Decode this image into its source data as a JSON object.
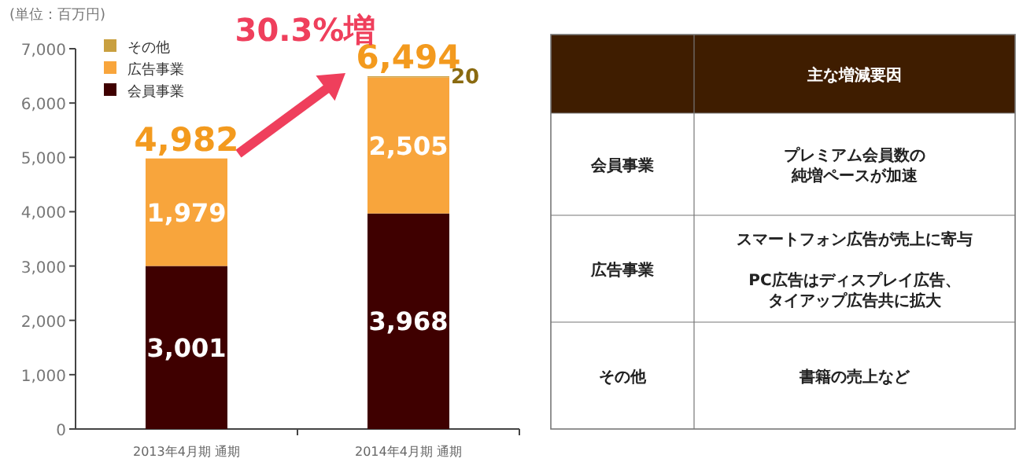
{
  "chart_data": [
    {
      "type": "bar",
      "stacked": true,
      "ylabel": "(単位：百万円)",
      "categories": [
        "2013年4月期 通期",
        "2014年4月期 通期"
      ],
      "series": [
        {
          "name": "会員事業",
          "color": "#3f0000",
          "values": [
            3001,
            3968
          ],
          "value_labels": [
            "3,001",
            "3,968"
          ]
        },
        {
          "name": "広告事業",
          "color": "#f8a53c",
          "values": [
            1979,
            2505
          ],
          "value_labels": [
            "1,979",
            "2,505"
          ]
        },
        {
          "name": "その他",
          "color": "#c9a040",
          "values": [
            null,
            20
          ],
          "value_labels": [
            null,
            "20"
          ]
        }
      ],
      "totals": [
        "4,982",
        "6,494"
      ],
      "ylim": [
        0,
        7000
      ],
      "yticks": [
        {
          "value": 0,
          "label": "0"
        },
        {
          "value": 1000,
          "label": "1,000"
        },
        {
          "value": 2000,
          "label": "2,000"
        },
        {
          "value": 3000,
          "label": "3,000"
        },
        {
          "value": 4000,
          "label": "4,000"
        },
        {
          "value": 5000,
          "label": "5,000"
        },
        {
          "value": 6000,
          "label": "6,000"
        },
        {
          "value": 7000,
          "label": "7,000"
        }
      ],
      "legend": "top left",
      "annotations": [
        "30.3%増"
      ]
    },
    {
      "type": "other",
      "title": "主な増減要因",
      "categories": [
        "会員事業",
        "広告事業",
        "その他"
      ],
      "annotations": [
        "プレミアム会員数の",
        "純増ペースが加速",
        "スマートフォン広告が売上に寄与",
        "PC広告はディスプレイ広告、",
        "タイアップ広告共に拡大",
        "書籍の売上など"
      ]
    }
  ]
}
